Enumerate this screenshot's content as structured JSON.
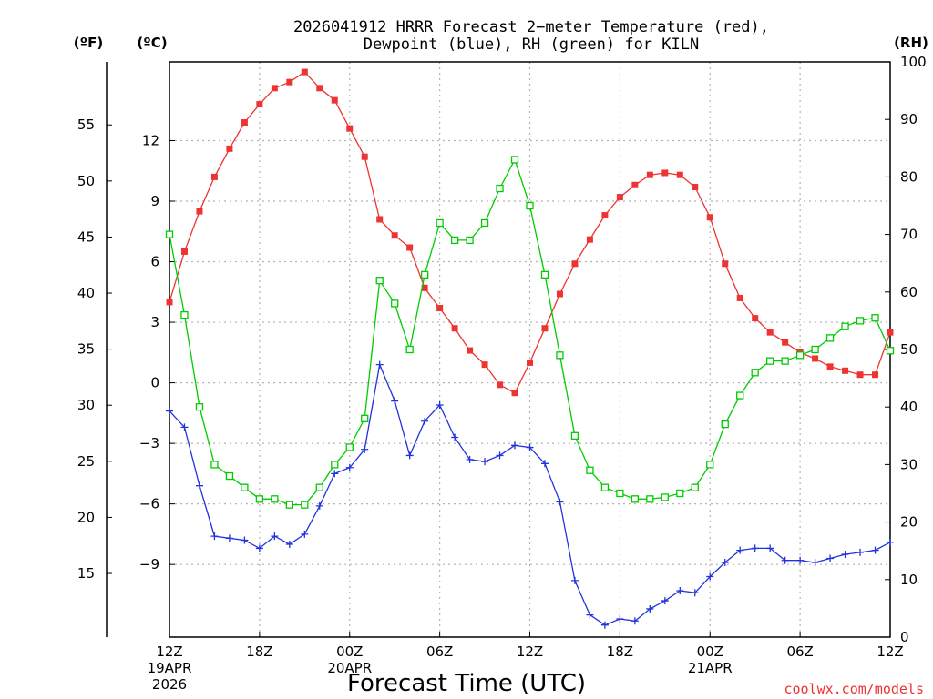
{
  "title_line1": "2026041912 HRRR Forecast 2−meter Temperature (red),",
  "title_line2": "Dewpoint (blue), RH (green) for KILN",
  "xlabel": "Forecast Time (UTC)",
  "credit": "coolwx.com/models",
  "units": {
    "fahrenheit": "(ºF)",
    "celsius": "(ºC)",
    "rh": "(RH)"
  },
  "colors": {
    "temperature": "#ee3333",
    "dewpoint": "#2233dd",
    "rh": "#00cc00",
    "grid": "#b4b4b4"
  },
  "chart_data": {
    "type": "line",
    "grid": true,
    "x_hours": [
      0,
      1,
      2,
      3,
      4,
      5,
      6,
      7,
      8,
      9,
      10,
      11,
      12,
      13,
      14,
      15,
      16,
      17,
      18,
      19,
      20,
      21,
      22,
      23,
      24,
      25,
      26,
      27,
      28,
      29,
      30,
      31,
      32,
      33,
      34,
      35,
      36,
      37,
      38,
      39,
      40,
      41,
      42,
      43,
      44,
      45,
      46,
      47,
      48
    ],
    "xticks": [
      {
        "hour": 0,
        "label": "12Z",
        "sub1": "19APR",
        "sub2": "2026"
      },
      {
        "hour": 6,
        "label": "18Z",
        "sub1": "",
        "sub2": ""
      },
      {
        "hour": 12,
        "label": "00Z",
        "sub1": "20APR",
        "sub2": ""
      },
      {
        "hour": 18,
        "label": "06Z",
        "sub1": "",
        "sub2": ""
      },
      {
        "hour": 24,
        "label": "12Z",
        "sub1": "",
        "sub2": ""
      },
      {
        "hour": 30,
        "label": "18Z",
        "sub1": "",
        "sub2": ""
      },
      {
        "hour": 36,
        "label": "00Z",
        "sub1": "21APR",
        "sub2": ""
      },
      {
        "hour": 42,
        "label": "06Z",
        "sub1": "",
        "sub2": ""
      },
      {
        "hour": 48,
        "label": "12Z",
        "sub1": "",
        "sub2": ""
      }
    ],
    "y_celsius_range": [
      -12.6,
      15.9
    ],
    "y_rh_range": [
      0,
      100
    ],
    "y_celsius_ticks": [
      "12",
      "9",
      "6",
      "3",
      "0",
      "−3",
      "−6",
      "−9"
    ],
    "y_celsius_tick_values": [
      12,
      9,
      6,
      3,
      0,
      -3,
      -6,
      -9
    ],
    "y_fahrenheit_ticks": [
      "55",
      "50",
      "45",
      "40",
      "35",
      "30",
      "25",
      "20",
      "15"
    ],
    "y_fahrenheit_tick_values": [
      55,
      50,
      45,
      40,
      35,
      30,
      25,
      20,
      15
    ],
    "y_rh_ticks": [
      "100",
      "90",
      "80",
      "70",
      "60",
      "50",
      "40",
      "30",
      "20",
      "10",
      "0"
    ],
    "y_rh_tick_values": [
      100,
      90,
      80,
      70,
      60,
      50,
      40,
      30,
      20,
      10,
      0
    ],
    "series": [
      {
        "key": "temperature",
        "unit": "degC",
        "marker": "filled-square",
        "values": [
          4.0,
          6.5,
          8.5,
          10.2,
          11.6,
          12.9,
          13.8,
          14.6,
          14.9,
          15.4,
          14.6,
          14.0,
          12.6,
          11.2,
          8.1,
          7.3,
          6.7,
          4.7,
          3.7,
          2.7,
          1.6,
          0.9,
          -0.1,
          -0.5,
          1.0,
          2.7,
          4.4,
          5.9,
          7.1,
          8.3,
          9.2,
          9.8,
          10.3,
          10.4,
          10.3,
          9.7,
          8.2,
          5.9,
          4.2,
          3.2,
          2.5,
          2.0,
          1.5,
          1.2,
          0.8,
          0.6,
          0.4,
          0.4,
          2.5
        ]
      },
      {
        "key": "dewpoint",
        "unit": "degC",
        "marker": "plus",
        "values": [
          -1.4,
          -2.2,
          -5.1,
          -7.6,
          -7.7,
          -7.8,
          -8.2,
          -7.6,
          -8.0,
          -7.5,
          -6.1,
          -4.5,
          -4.2,
          -3.3,
          0.9,
          -0.9,
          -3.6,
          -1.9,
          -1.1,
          -2.7,
          -3.8,
          -3.9,
          -3.6,
          -3.1,
          -3.2,
          -4.0,
          -5.9,
          -9.8,
          -11.5,
          -12.0,
          -11.7,
          -11.8,
          -11.2,
          -10.8,
          -10.3,
          -10.4,
          -9.6,
          -8.9,
          -8.3,
          -8.2,
          -8.2,
          -8.8,
          -8.8,
          -8.9,
          -8.7,
          -8.5,
          -8.4,
          -8.3,
          -7.9
        ]
      },
      {
        "key": "rh",
        "unit": "percent",
        "marker": "open-square",
        "values": [
          70,
          56,
          40,
          30,
          28,
          26,
          24,
          24,
          23,
          23,
          26,
          30,
          33,
          38,
          62,
          58,
          50,
          63,
          72,
          69,
          69,
          72,
          78,
          83,
          75,
          63,
          49,
          35,
          29,
          26,
          25,
          24,
          24,
          24.3,
          25,
          26,
          30,
          37,
          42,
          46,
          48,
          48,
          49,
          50,
          52,
          54,
          55,
          55.5,
          49.8
        ]
      }
    ]
  }
}
